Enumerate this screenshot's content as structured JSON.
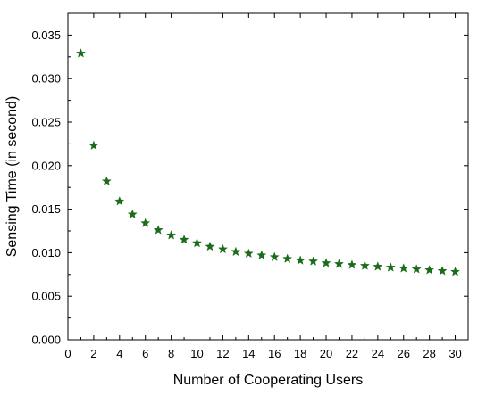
{
  "chart_data": {
    "type": "scatter",
    "title": "",
    "xlabel": "Number of Cooperating Users",
    "ylabel": "Sensing Time (in second)",
    "xlim": [
      0,
      31
    ],
    "ylim": [
      0,
      0.0375
    ],
    "x_ticks": [
      "0",
      "2",
      "4",
      "6",
      "8",
      "10",
      "12",
      "14",
      "16",
      "18",
      "20",
      "22",
      "24",
      "26",
      "28",
      "30"
    ],
    "x_tick_values": [
      0,
      2,
      4,
      6,
      8,
      10,
      12,
      14,
      16,
      18,
      20,
      22,
      24,
      26,
      28,
      30
    ],
    "y_ticks": [
      "0.000",
      "0.005",
      "0.010",
      "0.015",
      "0.020",
      "0.025",
      "0.030",
      "0.035"
    ],
    "y_tick_values": [
      0,
      0.005,
      0.01,
      0.015,
      0.02,
      0.025,
      0.03,
      0.035
    ],
    "grid": false,
    "legend": "none",
    "marker": "star",
    "series": [
      {
        "color": "#1a6b1a",
        "x": [
          1,
          2,
          3,
          4,
          5,
          6,
          7,
          8,
          9,
          10,
          11,
          12,
          13,
          14,
          15,
          16,
          17,
          18,
          19,
          20,
          21,
          22,
          23,
          24,
          25,
          26,
          27,
          28,
          29,
          30
        ],
        "y": [
          0.0329,
          0.0223,
          0.0182,
          0.0159,
          0.0144,
          0.0134,
          0.0126,
          0.012,
          0.0115,
          0.0111,
          0.0107,
          0.0104,
          0.0101,
          0.0099,
          0.0097,
          0.0095,
          0.0093,
          0.0091,
          0.009,
          0.0088,
          0.0087,
          0.0086,
          0.0085,
          0.0084,
          0.0083,
          0.0082,
          0.0081,
          0.008,
          0.0079,
          0.0078
        ]
      }
    ]
  }
}
